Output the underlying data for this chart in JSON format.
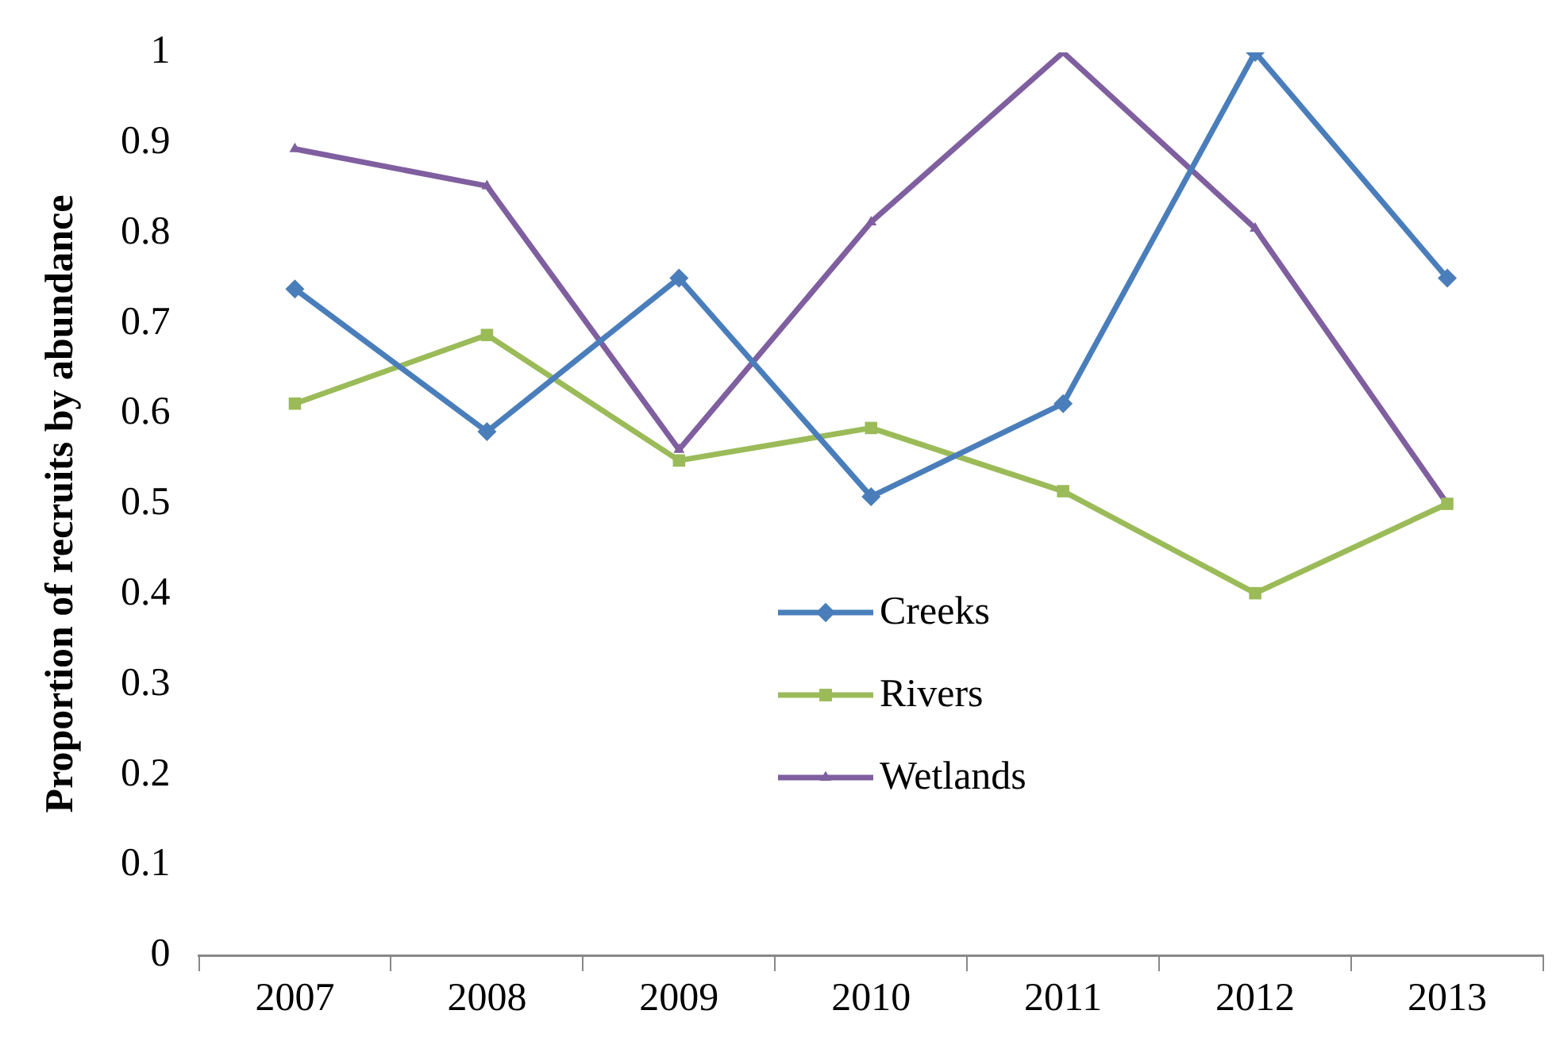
{
  "chart_data": {
    "type": "line",
    "ylabel": "Proportion of recruits by abundance",
    "categories": [
      "2007",
      "2008",
      "2009",
      "2010",
      "2011",
      "2012",
      "2013"
    ],
    "series": [
      {
        "name": "Creeks",
        "color": "#4a7ebb",
        "marker": "diamond",
        "values": [
          0.738,
          0.58,
          0.75,
          0.508,
          0.611,
          1,
          0.75
        ]
      },
      {
        "name": "Rivers",
        "color": "#9bbb59",
        "marker": "square",
        "values": [
          0.611,
          0.687,
          0.548,
          0.584,
          0.514,
          0.401,
          0.5
        ]
      },
      {
        "name": "Wetlands",
        "color": "#7f5f9f",
        "marker": "triangle",
        "values": [
          0.893,
          0.852,
          0.56,
          0.812,
          1,
          0.805,
          0.5
        ]
      }
    ],
    "ylim": [
      0,
      1
    ],
    "yticks": [
      0,
      0.1,
      0.2,
      0.3,
      0.4,
      0.5,
      0.6,
      0.7,
      0.8,
      0.9,
      1
    ],
    "grid": false,
    "legend": "bottom",
    "line_style": "solid"
  }
}
